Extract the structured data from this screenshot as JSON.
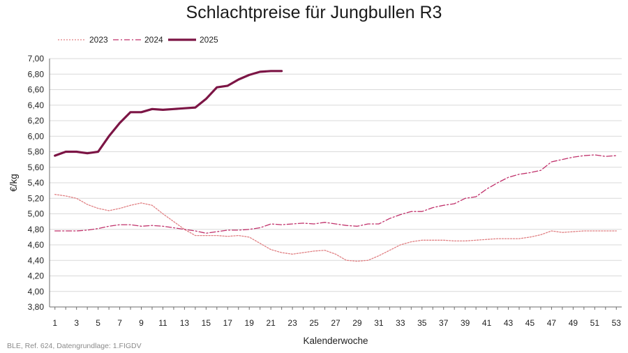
{
  "chart_data": {
    "type": "line",
    "title": "Schlachtpreise für Jungbullen R3",
    "xlabel": "Kalenderwoche",
    "ylabel": "€/kg",
    "xlim": [
      1,
      53
    ],
    "ylim": [
      3.8,
      7.0
    ],
    "ytick_step": 0.2,
    "xticks": [
      1,
      3,
      5,
      7,
      9,
      11,
      13,
      15,
      17,
      19,
      21,
      23,
      25,
      27,
      29,
      31,
      33,
      35,
      37,
      39,
      41,
      43,
      45,
      47,
      49,
      51,
      53
    ],
    "yticks": [
      "3,80",
      "4,00",
      "4,20",
      "4,40",
      "4,60",
      "4,80",
      "5,00",
      "5,20",
      "5,40",
      "5,60",
      "5,80",
      "6,00",
      "6,20",
      "6,40",
      "6,60",
      "6,80",
      "7,00"
    ],
    "grid": "horizontal",
    "legend": "top-left",
    "series": [
      {
        "name": "2023",
        "color": "#e07f82",
        "style": "dotted",
        "x": [
          1,
          2,
          3,
          4,
          5,
          6,
          7,
          8,
          9,
          10,
          11,
          12,
          13,
          14,
          15,
          16,
          17,
          18,
          19,
          20,
          21,
          22,
          23,
          24,
          25,
          26,
          27,
          28,
          29,
          30,
          31,
          32,
          33,
          34,
          35,
          36,
          37,
          38,
          39,
          40,
          41,
          42,
          43,
          44,
          45,
          46,
          47,
          48,
          49,
          50,
          51,
          52,
          53
        ],
        "values": [
          5.25,
          5.23,
          5.2,
          5.12,
          5.07,
          5.04,
          5.07,
          5.11,
          5.14,
          5.11,
          5.0,
          4.9,
          4.8,
          4.72,
          4.72,
          4.72,
          4.71,
          4.72,
          4.7,
          4.62,
          4.54,
          4.5,
          4.48,
          4.5,
          4.52,
          4.53,
          4.48,
          4.4,
          4.39,
          4.4,
          4.46,
          4.53,
          4.6,
          4.64,
          4.66,
          4.66,
          4.66,
          4.65,
          4.65,
          4.66,
          4.67,
          4.68,
          4.68,
          4.68,
          4.7,
          4.73,
          4.78,
          4.76,
          4.77,
          4.78,
          4.78,
          4.78,
          4.78
        ]
      },
      {
        "name": "2024",
        "color": "#c0306a",
        "style": "dashdot",
        "x": [
          1,
          2,
          3,
          4,
          5,
          6,
          7,
          8,
          9,
          10,
          11,
          12,
          13,
          14,
          15,
          16,
          17,
          18,
          19,
          20,
          21,
          22,
          23,
          24,
          25,
          26,
          27,
          28,
          29,
          30,
          31,
          32,
          33,
          34,
          35,
          36,
          37,
          38,
          39,
          40,
          41,
          42,
          43,
          44,
          45,
          46,
          47,
          48,
          49,
          50,
          51,
          52,
          53
        ],
        "values": [
          4.78,
          4.78,
          4.78,
          4.79,
          4.81,
          4.84,
          4.86,
          4.86,
          4.84,
          4.85,
          4.84,
          4.82,
          4.8,
          4.78,
          4.75,
          4.77,
          4.79,
          4.79,
          4.8,
          4.82,
          4.87,
          4.86,
          4.87,
          4.88,
          4.87,
          4.89,
          4.87,
          4.85,
          4.84,
          4.87,
          4.87,
          4.94,
          4.99,
          5.03,
          5.03,
          5.08,
          5.11,
          5.13,
          5.2,
          5.22,
          5.32,
          5.4,
          5.47,
          5.51,
          5.53,
          5.56,
          5.67,
          5.7,
          5.73,
          5.75,
          5.76,
          5.74,
          5.75
        ]
      },
      {
        "name": "2025",
        "color": "#7c1545",
        "style": "solid",
        "x": [
          1,
          2,
          3,
          4,
          5,
          6,
          7,
          8,
          9,
          10,
          11,
          12,
          13,
          14,
          15,
          16,
          17,
          18,
          19,
          20,
          21,
          22
        ],
        "values": [
          5.75,
          5.8,
          5.8,
          5.78,
          5.8,
          6.0,
          6.17,
          6.31,
          6.31,
          6.35,
          6.34,
          6.35,
          6.36,
          6.37,
          6.48,
          6.63,
          6.65,
          6.73,
          6.79,
          6.83,
          6.84,
          6.84
        ]
      }
    ]
  },
  "source": "BLE, Ref. 624, Datengrundlage: 1.FIGDV"
}
